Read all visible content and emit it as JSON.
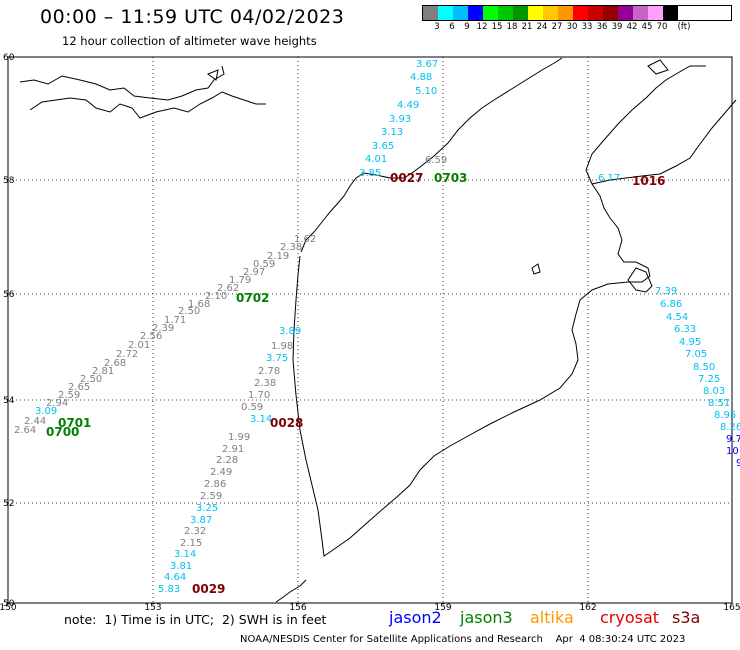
{
  "header": {
    "title": "00:00 – 11:59 UTC 04/02/2023",
    "subtitle": "12 hour collection of altimeter wave heights"
  },
  "legend": {
    "colors": [
      "#808080",
      "#00ffff",
      "#00bfff",
      "#0000ff",
      "#00ff00",
      "#00c800",
      "#009600",
      "#ffff00",
      "#ffc800",
      "#ff9600",
      "#ff0000",
      "#c80000",
      "#960000",
      "#960096",
      "#c864c8",
      "#ffa0ff",
      "#000000"
    ],
    "labels": [
      "3",
      "6",
      "9",
      "12",
      "15",
      "18",
      "21",
      "24",
      "27",
      "30",
      "33",
      "36",
      "39",
      "42",
      "45",
      "70",
      "(ft)"
    ]
  },
  "map": {
    "lon_ticks": [
      "150",
      "153",
      "156",
      "159",
      "162",
      "165"
    ],
    "lat_ticks": [
      "60",
      "58",
      "56",
      "54",
      "52",
      "50"
    ],
    "colors": {
      "grey": "#808080",
      "cyan": "#00c0f0",
      "blue": "#0000ff",
      "green": "#008000",
      "orange": "#ff9600",
      "darkred": "#7f0000",
      "red": "#e00000"
    },
    "swh_labels": [
      {
        "t": "3.67",
        "c": "cyan"
      },
      {
        "t": "4.88",
        "c": "cyan"
      },
      {
        "t": "5.10",
        "c": "cyan"
      },
      {
        "t": "4.49",
        "c": "cyan"
      },
      {
        "t": "3.93",
        "c": "cyan"
      },
      {
        "t": "3.13",
        "c": "cyan"
      },
      {
        "t": "3.65",
        "c": "cyan"
      },
      {
        "t": "4.01",
        "c": "cyan"
      },
      {
        "t": "3.85",
        "c": "cyan"
      },
      {
        "t": "6.59",
        "c": "grey"
      },
      {
        "t": "6.17",
        "c": "cyan"
      },
      {
        "t": "7.39",
        "c": "cyan"
      },
      {
        "t": "6.86",
        "c": "cyan"
      },
      {
        "t": "4.54",
        "c": "cyan"
      },
      {
        "t": "6.33",
        "c": "cyan"
      },
      {
        "t": "4.95",
        "c": "cyan"
      },
      {
        "t": "7.05",
        "c": "cyan"
      },
      {
        "t": "8.50",
        "c": "cyan"
      },
      {
        "t": "7.25",
        "c": "cyan"
      },
      {
        "t": "8.03",
        "c": "cyan"
      },
      {
        "t": "8.51",
        "c": "cyan"
      },
      {
        "t": "8.95",
        "c": "cyan"
      },
      {
        "t": "8.26",
        "c": "cyan"
      },
      {
        "t": "9.7",
        "c": "blue"
      },
      {
        "t": "10",
        "c": "blue"
      },
      {
        "t": "9",
        "c": "blue"
      },
      {
        "t": "1.62",
        "c": "grey"
      },
      {
        "t": "2.38",
        "c": "grey"
      },
      {
        "t": "2.19",
        "c": "grey"
      },
      {
        "t": "0.59",
        "c": "grey"
      },
      {
        "t": "2.97",
        "c": "grey"
      },
      {
        "t": "1.79",
        "c": "grey"
      },
      {
        "t": "2.62",
        "c": "grey"
      },
      {
        "t": "2.10",
        "c": "grey"
      },
      {
        "t": "1.68",
        "c": "grey"
      },
      {
        "t": "2.50",
        "c": "grey"
      },
      {
        "t": "1.71",
        "c": "grey"
      },
      {
        "t": "2.39",
        "c": "grey"
      },
      {
        "t": "2.56",
        "c": "grey"
      },
      {
        "t": "2.01",
        "c": "grey"
      },
      {
        "t": "2.72",
        "c": "grey"
      },
      {
        "t": "2.68",
        "c": "grey"
      },
      {
        "t": "2.81",
        "c": "grey"
      },
      {
        "t": "2.50",
        "c": "grey"
      },
      {
        "t": "2.65",
        "c": "grey"
      },
      {
        "t": "2.59",
        "c": "grey"
      },
      {
        "t": "2.94",
        "c": "grey"
      },
      {
        "t": "3.09",
        "c": "cyan"
      },
      {
        "t": "2.44",
        "c": "grey"
      },
      {
        "t": "2.64",
        "c": "grey"
      },
      {
        "t": "3.89",
        "c": "cyan"
      },
      {
        "t": "1.98",
        "c": "grey"
      },
      {
        "t": "3.75",
        "c": "cyan"
      },
      {
        "t": "2.78",
        "c": "grey"
      },
      {
        "t": "2.38",
        "c": "grey"
      },
      {
        "t": "1.70",
        "c": "grey"
      },
      {
        "t": "0.59",
        "c": "grey"
      },
      {
        "t": "3.14",
        "c": "cyan"
      },
      {
        "t": "1.99",
        "c": "grey"
      },
      {
        "t": "2.91",
        "c": "grey"
      },
      {
        "t": "2.28",
        "c": "grey"
      },
      {
        "t": "2.49",
        "c": "grey"
      },
      {
        "t": "2.86",
        "c": "grey"
      },
      {
        "t": "2.59",
        "c": "grey"
      },
      {
        "t": "3.25",
        "c": "cyan"
      },
      {
        "t": "3.87",
        "c": "cyan"
      },
      {
        "t": "2.32",
        "c": "grey"
      },
      {
        "t": "2.15",
        "c": "grey"
      },
      {
        "t": "3.14",
        "c": "cyan"
      },
      {
        "t": "3.81",
        "c": "cyan"
      },
      {
        "t": "4.64",
        "c": "cyan"
      },
      {
        "t": "5.83",
        "c": "cyan"
      }
    ],
    "time_labels": [
      {
        "t": "0027",
        "c": "darkred"
      },
      {
        "t": "0703",
        "c": "green"
      },
      {
        "t": "1016",
        "c": "darkred"
      },
      {
        "t": "0702",
        "c": "green"
      },
      {
        "t": "0701",
        "c": "green"
      },
      {
        "t": "0700",
        "c": "green"
      },
      {
        "t": "0028",
        "c": "darkred"
      },
      {
        "t": "0029",
        "c": "darkred"
      }
    ]
  },
  "footer": {
    "note": "note:  1) Time is in UTC;  2) SWH is in feet",
    "satellites": [
      {
        "name": "jason2",
        "color": "#0000ff"
      },
      {
        "name": "jason3",
        "color": "#008000"
      },
      {
        "name": "altika",
        "color": "#ff9600"
      },
      {
        "name": "cryosat",
        "color": "#e00000"
      },
      {
        "name": "s3a",
        "color": "#7f0000"
      }
    ],
    "credit": "NOAA/NESDIS Center for Satellite Applications and Research    Apr  4 08:30:24 UTC 2023"
  }
}
